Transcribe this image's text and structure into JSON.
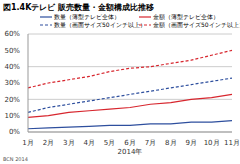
{
  "chart_data": {
    "type": "line",
    "title": "図1.4Kテレビ 販売数量・金額構成比推移",
    "x_label": "2014年",
    "source": "BCN 2014",
    "categories": [
      "1月",
      "2月",
      "3月",
      "4月",
      "5月",
      "6月",
      "7月",
      "8月",
      "9月",
      "10月",
      "11月"
    ],
    "series": [
      {
        "name": "数量（薄型テレビ全体）",
        "color": "#2e4f9e",
        "line_style": "solid",
        "values": [
          2,
          2.5,
          3,
          3.5,
          4,
          4,
          5,
          5,
          6,
          6,
          7
        ]
      },
      {
        "name": "金額（薄型テレビ全体）",
        "color": "#d7262e",
        "line_style": "solid",
        "values": [
          9,
          10,
          12,
          13,
          14,
          15,
          17,
          18,
          20,
          21,
          23
        ]
      },
      {
        "name": "数量（画面サイズ50インチ以上）",
        "color": "#2e4f9e",
        "line_style": "dashed",
        "values": [
          12,
          15,
          17,
          19,
          21,
          23,
          25,
          27,
          29,
          31,
          33
        ]
      },
      {
        "name": "金額（画面サイズ50インチ以上）",
        "color": "#d7262e",
        "line_style": "dashed",
        "values": [
          27,
          30,
          32,
          34,
          37,
          39,
          40,
          42,
          44,
          47,
          50
        ]
      }
    ],
    "ylim": [
      0,
      60
    ],
    "yticks": [
      {
        "value": 0,
        "label": "0%"
      },
      {
        "value": 10,
        "label": "10%"
      },
      {
        "value": 20,
        "label": "20%"
      },
      {
        "value": 30,
        "label": "30%"
      },
      {
        "value": 40,
        "label": "40%"
      },
      {
        "value": 50,
        "label": "50%"
      },
      {
        "value": 60,
        "label": "60%"
      }
    ],
    "grid": true
  }
}
